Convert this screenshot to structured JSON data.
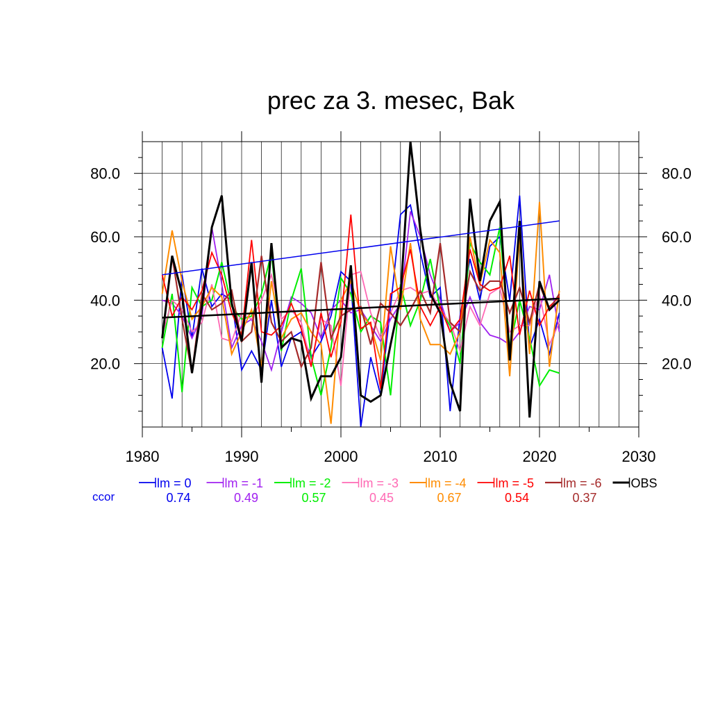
{
  "chart_data": {
    "type": "line",
    "title": "prec za 3. mesec, Bak",
    "xlim": [
      1980,
      2030
    ],
    "ylim": [
      0,
      90
    ],
    "x_ticks": [
      1980,
      1990,
      2000,
      2010,
      2020,
      2030
    ],
    "x_tick_labels": [
      "1980",
      "1990",
      "2000",
      "2010",
      "2020",
      "2030"
    ],
    "y_ticks": [
      20,
      40,
      60,
      80
    ],
    "y_tick_labels": [
      "20.0",
      "40.0",
      "60.0",
      "80.0"
    ],
    "grid": true,
    "legend_position": "bottom",
    "ccor_label": "ccor",
    "x": [
      1982,
      1983,
      1984,
      1985,
      1986,
      1987,
      1988,
      1989,
      1990,
      1991,
      1992,
      1993,
      1994,
      1995,
      1996,
      1997,
      1998,
      1999,
      2000,
      2001,
      2002,
      2003,
      2004,
      2005,
      2006,
      2007,
      2008,
      2009,
      2010,
      2011,
      2012,
      2013,
      2014,
      2015,
      2016,
      2017,
      2018,
      2019,
      2020,
      2021,
      2022
    ],
    "series": [
      {
        "name": "lm = 0",
        "ccor": "0.74",
        "color": "#0000ee",
        "width": 1.8,
        "values": [
          25,
          9,
          48,
          28,
          50,
          38,
          42,
          40,
          18,
          24,
          18,
          40,
          19,
          28,
          30,
          22,
          27,
          35,
          49,
          46,
          0,
          22,
          10,
          38,
          67,
          70,
          55,
          41,
          44,
          5,
          35,
          53,
          40,
          57,
          60,
          40,
          73,
          25,
          34,
          23,
          36
        ]
      },
      {
        "name": "lm = -1",
        "ccor": "0.49",
        "color": "#a020f0",
        "width": 1.8,
        "values": [
          40,
          39,
          35,
          28,
          35,
          63,
          45,
          25,
          32,
          34,
          27,
          18,
          30,
          41,
          39,
          36,
          28,
          37,
          40,
          36,
          37,
          32,
          27,
          34,
          39,
          68,
          60,
          48,
          40,
          30,
          33,
          41,
          33,
          29,
          28,
          26,
          30,
          38,
          37,
          48,
          30
        ]
      },
      {
        "name": "lm = -2",
        "ccor": "0.57",
        "color": "#00ee00",
        "width": 2.0,
        "values": [
          25,
          42,
          11,
          44,
          38,
          40,
          52,
          38,
          34,
          35,
          42,
          55,
          24,
          40,
          50,
          22,
          10,
          25,
          47,
          42,
          30,
          35,
          33,
          10,
          45,
          32,
          40,
          53,
          37,
          32,
          20,
          58,
          52,
          48,
          63,
          25,
          40,
          28,
          13,
          18,
          17
        ]
      },
      {
        "name": "lm = -3",
        "ccor": "0.45",
        "color": "#ff69b4",
        "width": 1.8,
        "values": [
          29,
          40,
          37,
          30,
          33,
          45,
          28,
          27,
          36,
          34,
          40,
          48,
          34,
          37,
          33,
          20,
          34,
          32,
          13,
          48,
          49,
          36,
          28,
          36,
          43,
          44,
          42,
          43,
          37,
          33,
          24,
          38,
          32,
          42,
          44,
          30,
          32,
          32,
          42,
          26,
          33
        ]
      },
      {
        "name": "lm = -4",
        "ccor": "0.67",
        "color": "#ff8c00",
        "width": 2.0,
        "values": [
          42,
          62,
          46,
          34,
          38,
          44,
          41,
          23,
          30,
          37,
          19,
          46,
          28,
          34,
          36,
          30,
          26,
          1,
          40,
          46,
          36,
          32,
          21,
          57,
          37,
          58,
          34,
          26,
          26,
          23,
          30,
          60,
          45,
          59,
          55,
          16,
          60,
          23,
          71,
          19,
          43
        ]
      },
      {
        "name": "lm = -5",
        "ccor": "0.54",
        "color": "#ff0000",
        "width": 1.8,
        "values": [
          48,
          35,
          41,
          37,
          43,
          55,
          48,
          36,
          29,
          59,
          30,
          29,
          32,
          39,
          31,
          19,
          36,
          22,
          33,
          67,
          31,
          33,
          12,
          42,
          44,
          56,
          38,
          32,
          38,
          30,
          34,
          56,
          45,
          43,
          44,
          54,
          29,
          43,
          32,
          38,
          41
        ]
      },
      {
        "name": "lm = -6",
        "ccor": "0.37",
        "color": "#a52a2a",
        "width": 2.2,
        "values": [
          28,
          54,
          34,
          17,
          42,
          37,
          39,
          43,
          27,
          30,
          54,
          33,
          27,
          30,
          19,
          25,
          52,
          28,
          35,
          37,
          38,
          26,
          39,
          36,
          32,
          37,
          43,
          36,
          58,
          33,
          30,
          49,
          43,
          46,
          46,
          36,
          44,
          33,
          45,
          37,
          42
        ]
      },
      {
        "name": "OBS",
        "ccor": "",
        "color": "#000000",
        "width": 3.0,
        "values": [
          28,
          54,
          42,
          17,
          38,
          63,
          73,
          39,
          27,
          52,
          14,
          58,
          25,
          28,
          27,
          9,
          16,
          16,
          22,
          51,
          10,
          8,
          10,
          26,
          41,
          90,
          62,
          42,
          36,
          14,
          5,
          72,
          46,
          65,
          71,
          21,
          65,
          3,
          46,
          37,
          40
        ]
      }
    ],
    "trend_lines": [
      {
        "name": "lm = 0 trend",
        "color": "#0000ee",
        "width": 1.5,
        "x": [
          1982,
          2022
        ],
        "y": [
          48,
          65
        ]
      },
      {
        "name": "OBS trend",
        "color": "#000000",
        "width": 2.5,
        "x": [
          1982,
          2022
        ],
        "y": [
          34.5,
          40.5
        ]
      }
    ]
  }
}
